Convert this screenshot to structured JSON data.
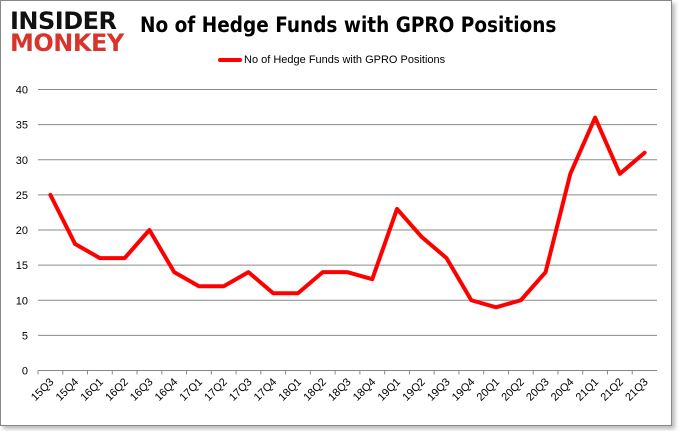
{
  "logo": {
    "line1": "INSIDER",
    "line2": "MONKEY"
  },
  "chart_data": {
    "type": "line",
    "title": "No of Hedge Funds with GPRO Positions",
    "legend": {
      "entries": [
        "No of Hedge Funds with GPRO Positions"
      ],
      "placement": "top-center"
    },
    "xlabel": "",
    "ylabel": "",
    "ylim": [
      0,
      40
    ],
    "yticks": [
      0,
      5,
      10,
      15,
      20,
      25,
      30,
      35,
      40
    ],
    "grid": true,
    "categories": [
      "15Q3",
      "15Q4",
      "16Q1",
      "16Q2",
      "16Q3",
      "16Q4",
      "17Q1",
      "17Q2",
      "17Q3",
      "17Q4",
      "18Q1",
      "18Q2",
      "18Q3",
      "18Q4",
      "19Q1",
      "19Q2",
      "19Q3",
      "19Q4",
      "20Q1",
      "20Q2",
      "20Q3",
      "20Q4",
      "21Q1",
      "21Q2",
      "21Q3"
    ],
    "series": [
      {
        "name": "No of Hedge Funds with GPRO Positions",
        "color": "#ff0000",
        "values": [
          25,
          18,
          16,
          16,
          20,
          14,
          12,
          12,
          14,
          11,
          11,
          14,
          14,
          13,
          23,
          19,
          16,
          10,
          9,
          10,
          14,
          28,
          36,
          28,
          31
        ]
      }
    ]
  }
}
